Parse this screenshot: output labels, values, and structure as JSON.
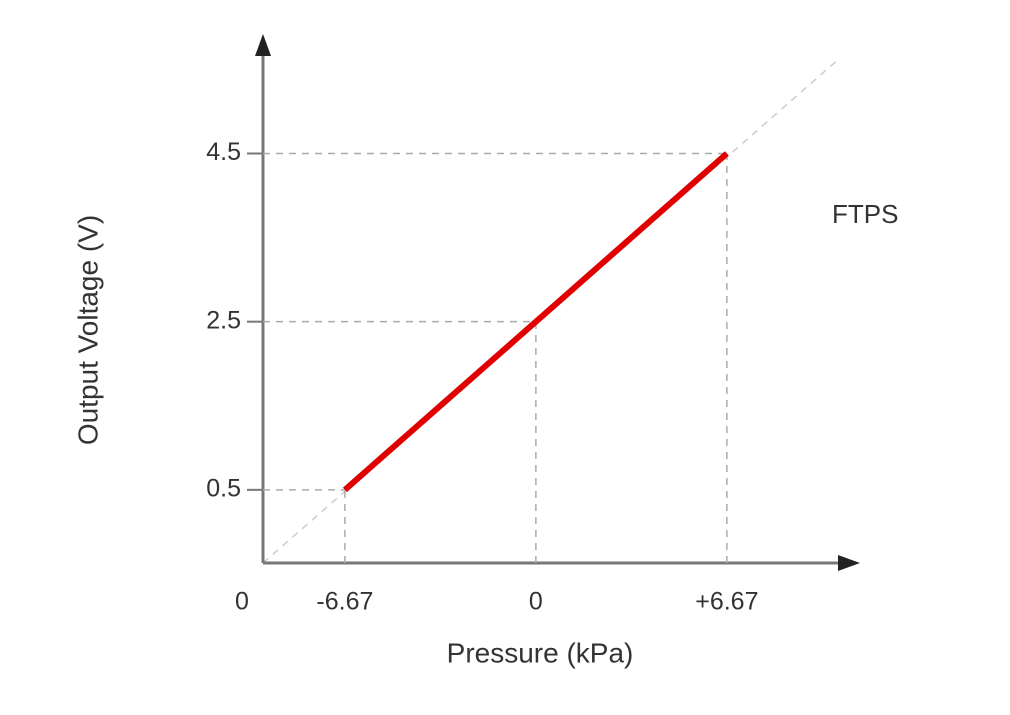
{
  "chart_data": {
    "type": "line",
    "x_label": "Pressure (kPa)",
    "y_label": "Output Voltage (V)",
    "annotation": "FTPS",
    "origin_label": "0",
    "x": [
      -6.67,
      6.67
    ],
    "series": [
      {
        "name": "FTPS",
        "color": "#e00000",
        "values": [
          0.5,
          4.5
        ]
      }
    ],
    "xlim": [
      -9.53,
      10.97
    ],
    "ylim": [
      -0.37,
      5.85
    ],
    "xticks": [
      -6.67,
      0,
      {
        "value": 6.67,
        "label": "+6.67"
      }
    ],
    "yticks": [
      0.5,
      2.5,
      4.5
    ]
  }
}
